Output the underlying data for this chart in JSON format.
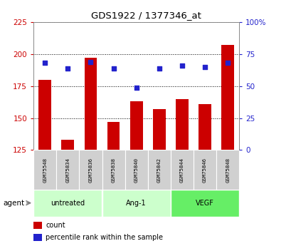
{
  "title": "GDS1922 / 1377346_at",
  "samples": [
    "GSM75548",
    "GSM75834",
    "GSM75836",
    "GSM75838",
    "GSM75840",
    "GSM75842",
    "GSM75844",
    "GSM75846",
    "GSM75848"
  ],
  "count_values": [
    180,
    133,
    197,
    147,
    163,
    157,
    165,
    161,
    207
  ],
  "percentile_values": [
    68,
    64,
    69,
    64,
    49,
    64,
    66,
    65,
    68
  ],
  "ylim_left": [
    125,
    225
  ],
  "ylim_right": [
    0,
    100
  ],
  "yticks_left": [
    125,
    150,
    175,
    200,
    225
  ],
  "yticks_right": [
    0,
    25,
    50,
    75,
    100
  ],
  "ytick_labels_right": [
    "0",
    "25",
    "50",
    "75",
    "100%"
  ],
  "bar_color": "#cc0000",
  "dot_color": "#2222cc",
  "bar_bottom": 125,
  "group_labels": [
    "untreated",
    "Ang-1",
    "VEGF"
  ],
  "group_colors": [
    "#ccffcc",
    "#ccffcc",
    "#66ee66"
  ],
  "group_ranges": [
    [
      0,
      3
    ],
    [
      3,
      6
    ],
    [
      6,
      9
    ]
  ],
  "legend_count_label": "count",
  "legend_pct_label": "percentile rank within the sample",
  "agent_label": "agent",
  "left_axis_color": "#cc0000",
  "right_axis_color": "#2222cc",
  "sample_box_color": "#d0d0d0",
  "grid_color": "black"
}
